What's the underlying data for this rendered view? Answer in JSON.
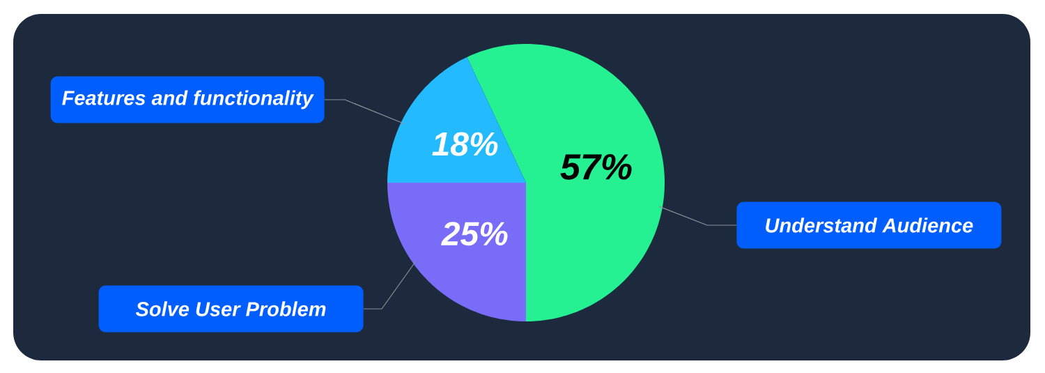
{
  "chart_data": {
    "type": "pie",
    "categories": [
      "Understand Audience",
      "Features and functionality",
      "Solve User Problem"
    ],
    "values": [
      57,
      18,
      25
    ],
    "colors": [
      "#25F092",
      "#24BAFF",
      "#786CF9"
    ],
    "value_labels": [
      "57%",
      "18%",
      "25%"
    ]
  }
}
